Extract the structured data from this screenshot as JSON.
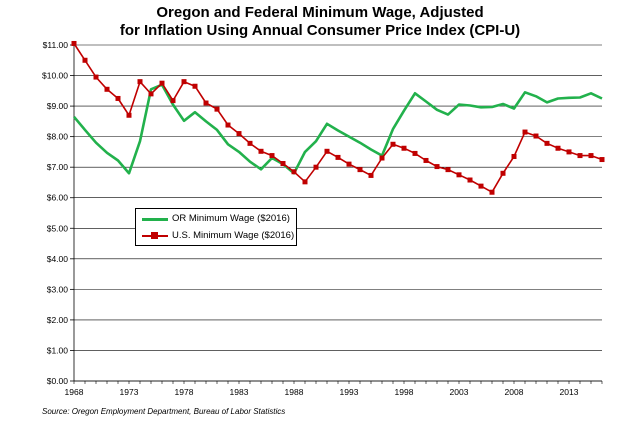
{
  "chart_data": {
    "type": "line",
    "title_line1": "Oregon and Federal Minimum Wage, Adjusted",
    "title_line2": "for Inflation Using Annual Consumer Price Index (CPI-U)",
    "xlabel": "",
    "ylabel": "",
    "xlim": [
      1968,
      2016
    ],
    "ylim": [
      0,
      11
    ],
    "grid": true,
    "legend_position": "center-left",
    "x_ticks": [
      1968,
      1973,
      1978,
      1983,
      1988,
      1993,
      1998,
      2003,
      2008,
      2013
    ],
    "y_ticks": [
      0,
      1,
      2,
      3,
      4,
      5,
      6,
      7,
      8,
      9,
      10,
      11
    ],
    "y_tick_labels": [
      "$0.00",
      "$1.00",
      "$2.00",
      "$3.00",
      "$4.00",
      "$5.00",
      "$6.00",
      "$7.00",
      "$8.00",
      "$9.00",
      "$10.00",
      "$11.00"
    ],
    "x_tick_labels": [
      "1968",
      "1973",
      "1978",
      "1983",
      "1988",
      "1993",
      "1998",
      "2003",
      "2008",
      "2013"
    ],
    "series": [
      {
        "name": "OR Minimum Wage ($2016)",
        "color": "#22b14c",
        "marker": "none",
        "x": [
          1968,
          1969,
          1970,
          1971,
          1972,
          1973,
          1974,
          1975,
          1976,
          1977,
          1978,
          1979,
          1980,
          1981,
          1982,
          1983,
          1984,
          1985,
          1986,
          1987,
          1988,
          1989,
          1990,
          1991,
          1992,
          1993,
          1994,
          1995,
          1996,
          1997,
          1998,
          1999,
          2000,
          2001,
          2002,
          2003,
          2004,
          2005,
          2006,
          2007,
          2008,
          2009,
          2010,
          2011,
          2012,
          2013,
          2014,
          2015,
          2016
        ],
        "values": [
          8.65,
          8.22,
          7.8,
          7.47,
          7.22,
          6.8,
          7.85,
          9.55,
          9.7,
          9.05,
          8.52,
          8.8,
          8.5,
          8.22,
          7.75,
          7.5,
          7.18,
          6.93,
          7.3,
          7.1,
          6.8,
          7.5,
          7.85,
          8.42,
          8.2,
          8.0,
          7.8,
          7.58,
          7.38,
          8.25,
          8.85,
          9.42,
          9.15,
          8.88,
          8.72,
          9.05,
          9.02,
          8.96,
          8.97,
          9.07,
          8.92,
          9.45,
          9.32,
          9.12,
          9.25,
          9.27,
          9.28,
          9.42,
          9.25
        ]
      },
      {
        "name": "U.S. Minimum Wage ($2016)",
        "color": "#c00000",
        "marker": "square",
        "x": [
          1968,
          1969,
          1970,
          1971,
          1972,
          1973,
          1974,
          1975,
          1976,
          1977,
          1978,
          1979,
          1980,
          1981,
          1982,
          1983,
          1984,
          1985,
          1986,
          1987,
          1988,
          1989,
          1990,
          1991,
          1992,
          1993,
          1994,
          1995,
          1996,
          1997,
          1998,
          1999,
          2000,
          2001,
          2002,
          2003,
          2004,
          2005,
          2006,
          2007,
          2008,
          2009,
          2010,
          2011,
          2012,
          2013,
          2014,
          2015,
          2016
        ],
        "values": [
          11.05,
          10.5,
          9.95,
          9.55,
          9.25,
          8.7,
          9.8,
          9.4,
          9.75,
          9.18,
          9.8,
          9.65,
          9.1,
          8.9,
          8.38,
          8.1,
          7.78,
          7.52,
          7.38,
          7.12,
          6.85,
          6.52,
          7.0,
          7.52,
          7.32,
          7.1,
          6.92,
          6.73,
          7.3,
          7.75,
          7.62,
          7.45,
          7.22,
          7.02,
          6.92,
          6.75,
          6.58,
          6.38,
          6.18,
          6.8,
          7.35,
          8.15,
          8.02,
          7.78,
          7.62,
          7.5,
          7.38,
          7.38,
          7.25
        ]
      }
    ]
  },
  "source_note": "Source: Oregon Employment Department, Bureau of Labor Statistics"
}
